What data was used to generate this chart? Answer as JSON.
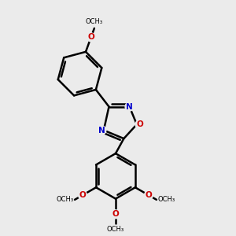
{
  "background_color": "#ebebeb",
  "bond_color": "#000000",
  "N_color": "#0000cc",
  "O_color": "#cc0000",
  "bond_width": 1.8,
  "figsize": [
    3.0,
    3.0
  ],
  "dpi": 100,
  "xlim": [
    0.1,
    0.9
  ],
  "ylim": [
    0.02,
    0.98
  ]
}
